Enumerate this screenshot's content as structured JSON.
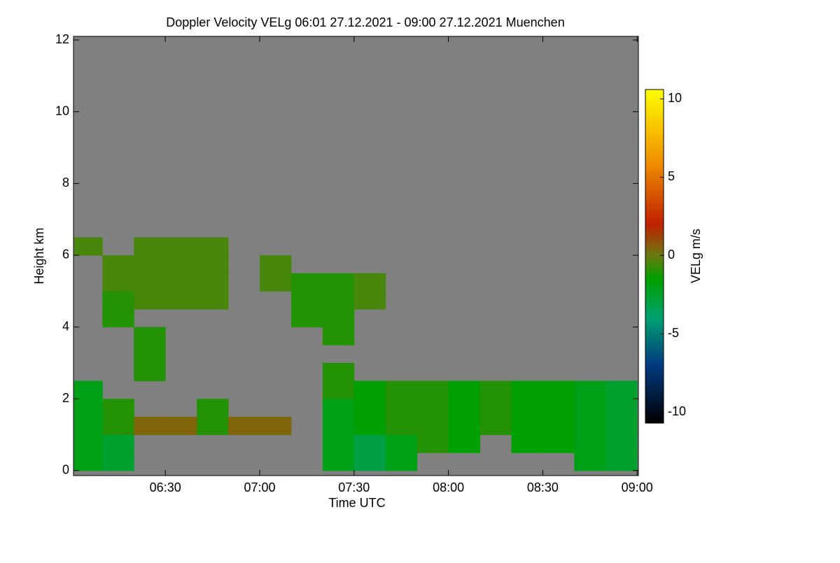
{
  "chart_data": {
    "type": "heatmap",
    "title": "Doppler Velocity VELg   06:01 27.12.2021 - 09:00 27.12.2021 Muenchen",
    "x_label": "Time UTC",
    "y_label": "Height km",
    "colorbar_label": "VELg m/s",
    "xlim": [
      360.8,
      540.4
    ],
    "xticks": [
      {
        "value": 390,
        "label": "06:30"
      },
      {
        "value": 420,
        "label": "07:00"
      },
      {
        "value": 450,
        "label": "07:30"
      },
      {
        "value": 480,
        "label": "08:00"
      },
      {
        "value": 510,
        "label": "08:30"
      },
      {
        "value": 540,
        "label": "09:00"
      }
    ],
    "ylim": [
      -0.14,
      12.1
    ],
    "yticks": [
      0,
      2,
      4,
      6,
      8,
      10,
      12
    ],
    "clim": [
      -10.7,
      10.6
    ],
    "cticks": [
      -10,
      -5,
      0,
      5,
      10
    ],
    "missing_color": "#808080",
    "colorscale": [
      [
        -10.7,
        "#000000"
      ],
      [
        -7,
        "#003a80"
      ],
      [
        -4,
        "#00a070"
      ],
      [
        -1.5,
        "#00a000"
      ],
      [
        0,
        "#6a7a10"
      ],
      [
        2,
        "#c02000"
      ],
      [
        6,
        "#f09000"
      ],
      [
        10.6,
        "#ffff00"
      ]
    ],
    "x_bins": [
      361,
      370,
      380,
      390,
      400,
      410,
      420,
      430,
      440,
      450,
      460,
      470,
      480,
      490,
      500,
      510,
      520,
      530,
      540
    ],
    "y_bins": [
      0,
      0.5,
      1,
      1.5,
      2,
      2.5,
      3,
      3.5,
      4,
      4.5,
      5,
      5.5,
      6,
      6.5
    ],
    "z": [
      [
        -2,
        -2.5,
        null,
        null,
        null,
        null,
        null,
        null,
        -2,
        -3,
        -2,
        null,
        null,
        null,
        null,
        null,
        -2,
        -2.5
      ],
      [
        -2,
        -2.5,
        null,
        null,
        null,
        null,
        null,
        null,
        -2,
        -3,
        -2,
        -1,
        -1.5,
        null,
        -1.5,
        -1.5,
        -2,
        -2.5
      ],
      [
        -2,
        -1,
        0.5,
        0.5,
        -1,
        0.5,
        0.5,
        null,
        -2,
        -1.5,
        -1,
        -1,
        -1.5,
        -1,
        -1.5,
        -1.5,
        -2,
        -2.5
      ],
      [
        -2,
        -1,
        null,
        null,
        -1,
        null,
        null,
        null,
        -2,
        -1.5,
        -1,
        -1,
        -1.5,
        -1,
        -1.5,
        -1.5,
        -2,
        -2.5
      ],
      [
        -2,
        null,
        null,
        null,
        null,
        null,
        null,
        null,
        -1,
        -1.5,
        -1,
        -1,
        -1.5,
        -1,
        -1.5,
        -1.5,
        -2,
        -2.5
      ],
      [
        null,
        null,
        -1,
        null,
        null,
        null,
        null,
        null,
        -1,
        null,
        null,
        null,
        null,
        null,
        null,
        null,
        null,
        null
      ],
      [
        null,
        null,
        -1,
        null,
        null,
        null,
        null,
        null,
        null,
        null,
        null,
        null,
        null,
        null,
        null,
        null,
        null,
        null
      ],
      [
        null,
        null,
        -1,
        null,
        null,
        null,
        null,
        null,
        -1,
        null,
        null,
        null,
        null,
        null,
        null,
        null,
        null,
        null
      ],
      [
        null,
        -1,
        null,
        null,
        null,
        null,
        null,
        -1,
        -1,
        null,
        null,
        null,
        null,
        null,
        null,
        null,
        null,
        null
      ],
      [
        null,
        -1,
        -0.5,
        -0.5,
        -0.5,
        null,
        null,
        -1,
        -1,
        -0.5,
        null,
        null,
        null,
        null,
        null,
        null,
        null,
        null
      ],
      [
        null,
        -0.5,
        -0.5,
        -0.5,
        -0.5,
        null,
        -0.5,
        -1,
        -1,
        -0.5,
        null,
        null,
        null,
        null,
        null,
        null,
        null,
        null
      ],
      [
        null,
        -0.5,
        -0.5,
        -0.5,
        -0.5,
        null,
        -0.5,
        null,
        null,
        null,
        null,
        null,
        null,
        null,
        null,
        null,
        null,
        null
      ],
      [
        -0.5,
        null,
        -0.5,
        -0.5,
        -0.5,
        null,
        null,
        null,
        null,
        null,
        null,
        null,
        null,
        null,
        null,
        null,
        null,
        null
      ]
    ]
  }
}
